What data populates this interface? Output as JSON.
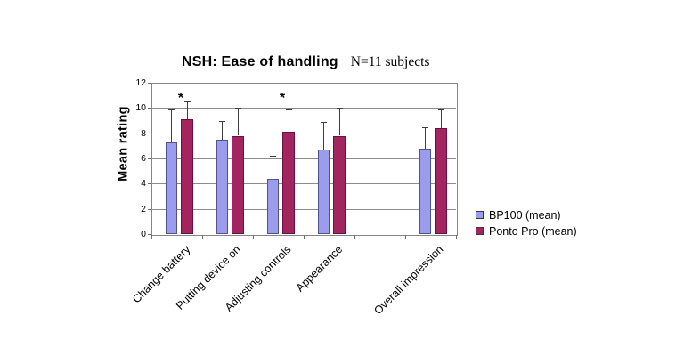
{
  "chart_data": {
    "type": "bar",
    "title": "NSH: Ease of handling",
    "subtitle": "N=11 subjects",
    "ylabel": "Mean rating",
    "ylim": [
      0,
      12
    ],
    "yticks": [
      0,
      2,
      4,
      6,
      8,
      10,
      12
    ],
    "grid": true,
    "legend_position": "right",
    "categories": [
      "Change battery",
      "Putting device on",
      "Adjusting controls",
      "Appearance",
      "",
      "Overall impression"
    ],
    "series": [
      {
        "name": "BP100 (mean)",
        "color": "#9C9CEC",
        "border_color": "#52528F",
        "values": [
          7.3,
          7.5,
          4.4,
          6.7,
          null,
          6.8
        ],
        "error_top": [
          9.9,
          9.0,
          6.2,
          8.9,
          null,
          8.5
        ]
      },
      {
        "name": "Ponto Pro (mean)",
        "color": "#A32560",
        "border_color": "#6B1040",
        "values": [
          9.1,
          7.8,
          8.1,
          7.8,
          null,
          8.4
        ],
        "error_top": [
          10.5,
          10.0,
          9.9,
          10.0,
          null,
          9.9
        ]
      }
    ],
    "annotations": [
      {
        "symbol": "*",
        "category_index": 0,
        "series_index": 1
      },
      {
        "symbol": "*",
        "category_index": 2,
        "series_index": 1
      }
    ]
  },
  "colors": {
    "background": "#ffffff",
    "gridline": "#8c8c8c",
    "plot_border": "#858585",
    "error_bar": "#3d3d3d",
    "text": "#000000"
  }
}
